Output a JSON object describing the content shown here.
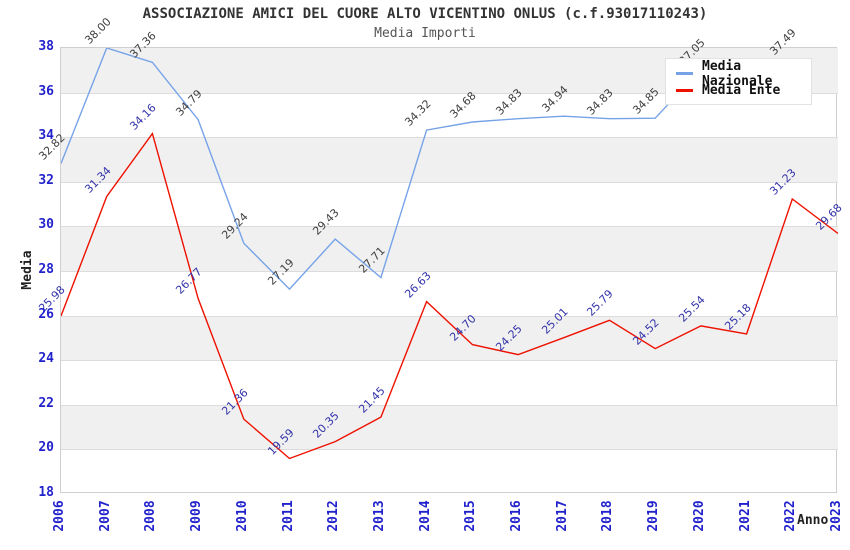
{
  "chart_data": {
    "type": "line",
    "title": "ASSOCIAZIONE AMICI DEL CUORE ALTO VICENTINO ONLUS (c.f.93017110243)",
    "subtitle": "Media Importi",
    "x_label": "Anno",
    "y_label": "Media",
    "ylim": [
      18,
      38
    ],
    "y_tick_step": 2,
    "grid": "on",
    "band_color": "#f0f0f0",
    "legend_position": "top-right",
    "categories": [
      "2006",
      "2007",
      "2008",
      "2009",
      "2010",
      "2011",
      "2012",
      "2013",
      "2014",
      "2015",
      "2016",
      "2017",
      "2018",
      "2019",
      "2020",
      "2021",
      "2022",
      "2023"
    ],
    "series": [
      {
        "name": "Media Nazionale",
        "color": "#76a3e8",
        "label_color": "#404040",
        "values": [
          32.82,
          38.0,
          37.36,
          34.79,
          29.24,
          27.19,
          29.43,
          27.71,
          34.32,
          34.68,
          34.83,
          34.94,
          34.83,
          34.85,
          37.05,
          null,
          37.49,
          null
        ]
      },
      {
        "name": "Media Ente",
        "color": "#ee1100",
        "label_color": "#3333aa",
        "values": [
          25.98,
          31.34,
          34.16,
          26.77,
          21.36,
          19.59,
          20.35,
          21.45,
          26.63,
          24.7,
          24.25,
          25.01,
          25.79,
          24.52,
          25.54,
          25.18,
          31.23,
          29.68
        ]
      }
    ],
    "axis_tick_color": "#2222cc"
  }
}
